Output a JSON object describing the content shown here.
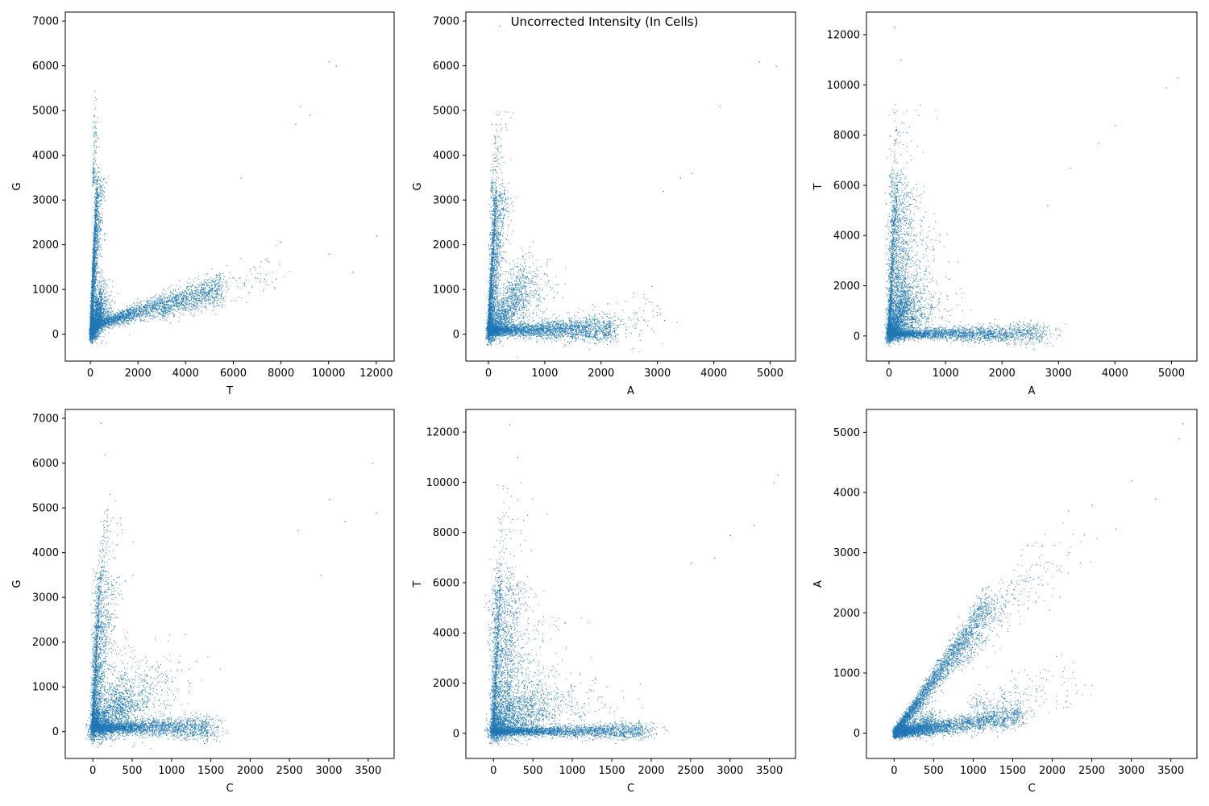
{
  "figure": {
    "title": "Uncorrected Intensity (In Cells)"
  },
  "chart_data": [
    {
      "type": "scatter",
      "xlabel": "T",
      "ylabel": "G",
      "xlim": [
        -1050,
        12750
      ],
      "ylim": [
        -600,
        7200
      ],
      "xticks": [
        0,
        2000,
        4000,
        6000,
        8000,
        10000,
        12000
      ],
      "yticks": [
        0,
        1000,
        2000,
        3000,
        4000,
        5000,
        6000,
        7000
      ],
      "color": "#1f77b4",
      "clusters": [
        {
          "x0": 0,
          "y0": 200,
          "x1": 5500,
          "y1": 1050,
          "spread": 150,
          "count": 2600
        },
        {
          "x0": 0,
          "y0": 100,
          "x1": 300,
          "y1": 3400,
          "spread": 150,
          "count": 2200
        },
        {
          "x0": 0,
          "y0": 0,
          "x1": 500,
          "y1": 800,
          "spread": 250,
          "count": 1800
        },
        {
          "x0": 3000,
          "y0": 500,
          "x1": 8000,
          "y1": 1500,
          "spread": 250,
          "count": 250
        },
        {
          "x0": 100,
          "y0": 3400,
          "x1": 200,
          "y1": 5200,
          "spread": 120,
          "count": 120
        }
      ],
      "points": [
        [
          10000,
          6100
        ],
        [
          10300,
          6000
        ],
        [
          8800,
          5100
        ],
        [
          9200,
          4900
        ],
        [
          8600,
          4700
        ],
        [
          6300,
          3500
        ],
        [
          12000,
          2200
        ],
        [
          11000,
          1400
        ],
        [
          10000,
          1800
        ]
      ]
    },
    {
      "type": "scatter",
      "xlabel": "A",
      "ylabel": "G",
      "xlim": [
        -400,
        5450
      ],
      "ylim": [
        -600,
        7200
      ],
      "xticks": [
        0,
        1000,
        2000,
        3000,
        4000,
        5000
      ],
      "yticks": [
        0,
        1000,
        2000,
        3000,
        4000,
        5000,
        6000,
        7000
      ],
      "color": "#1f77b4",
      "clusters": [
        {
          "x0": 0,
          "y0": 100,
          "x1": 2200,
          "y1": 100,
          "spread": 130,
          "count": 2600
        },
        {
          "x0": 0,
          "y0": 100,
          "x1": 150,
          "y1": 3200,
          "spread": 130,
          "count": 2200
        },
        {
          "x0": 0,
          "y0": 0,
          "x1": 700,
          "y1": 1300,
          "spread": 300,
          "count": 1800
        },
        {
          "x0": 1000,
          "y0": 200,
          "x1": 3000,
          "y1": 300,
          "spread": 250,
          "count": 250
        },
        {
          "x0": 50,
          "y0": 3200,
          "x1": 200,
          "y1": 5000,
          "spread": 150,
          "count": 120
        }
      ],
      "points": [
        [
          4800,
          6100
        ],
        [
          5100,
          6000
        ],
        [
          4100,
          5100
        ],
        [
          3600,
          3600
        ],
        [
          3400,
          3500
        ],
        [
          3100,
          3200
        ],
        [
          200,
          6900
        ]
      ]
    },
    {
      "type": "scatter",
      "xlabel": "A",
      "ylabel": "T",
      "xlim": [
        -400,
        5450
      ],
      "ylim": [
        -1000,
        12900
      ],
      "xticks": [
        0,
        1000,
        2000,
        3000,
        4000,
        5000
      ],
      "yticks": [
        0,
        2000,
        4000,
        6000,
        8000,
        10000,
        12000
      ],
      "color": "#1f77b4",
      "clusters": [
        {
          "x0": 0,
          "y0": 100,
          "x1": 2700,
          "y1": 100,
          "spread": 180,
          "count": 2600
        },
        {
          "x0": 0,
          "y0": 100,
          "x1": 150,
          "y1": 6000,
          "spread": 220,
          "count": 2200
        },
        {
          "x0": 0,
          "y0": 0,
          "x1": 400,
          "y1": 1500,
          "spread": 400,
          "count": 1800
        },
        {
          "x0": 200,
          "y0": 1000,
          "x1": 400,
          "y1": 4000,
          "spread": 400,
          "count": 400
        },
        {
          "x0": 50,
          "y0": 6000,
          "x1": 200,
          "y1": 9000,
          "spread": 300,
          "count": 120
        }
      ],
      "points": [
        [
          5100,
          10300
        ],
        [
          4900,
          9900
        ],
        [
          4000,
          8400
        ],
        [
          3700,
          7700
        ],
        [
          3200,
          6700
        ],
        [
          2800,
          5200
        ],
        [
          100,
          12300
        ],
        [
          200,
          11000
        ]
      ]
    },
    {
      "type": "scatter",
      "xlabel": "C",
      "ylabel": "G",
      "xlim": [
        -350,
        3830
      ],
      "ylim": [
        -600,
        7200
      ],
      "xticks": [
        0,
        500,
        1000,
        1500,
        2000,
        2500,
        3000,
        3500
      ],
      "yticks": [
        0,
        1000,
        2000,
        3000,
        4000,
        5000,
        6000,
        7000
      ],
      "color": "#1f77b4",
      "clusters": [
        {
          "x0": 0,
          "y0": 100,
          "x1": 1500,
          "y1": 100,
          "spread": 120,
          "count": 2600
        },
        {
          "x0": 0,
          "y0": 100,
          "x1": 100,
          "y1": 3400,
          "spread": 130,
          "count": 2200
        },
        {
          "x0": 0,
          "y0": 0,
          "x1": 500,
          "y1": 1000,
          "spread": 350,
          "count": 1800
        },
        {
          "x0": 300,
          "y0": 500,
          "x1": 1000,
          "y1": 1500,
          "spread": 300,
          "count": 250
        },
        {
          "x0": 100,
          "y0": 3400,
          "x1": 200,
          "y1": 5000,
          "spread": 150,
          "count": 120
        }
      ],
      "points": [
        [
          3550,
          6000
        ],
        [
          3600,
          4900
        ],
        [
          3000,
          5200
        ],
        [
          3200,
          4700
        ],
        [
          2600,
          4500
        ],
        [
          2900,
          3500
        ],
        [
          100,
          6900
        ],
        [
          150,
          6200
        ]
      ]
    },
    {
      "type": "scatter",
      "xlabel": "C",
      "ylabel": "T",
      "xlim": [
        -350,
        3830
      ],
      "ylim": [
        -1000,
        12900
      ],
      "xticks": [
        0,
        500,
        1000,
        1500,
        2000,
        2500,
        3000,
        3500
      ],
      "yticks": [
        0,
        2000,
        4000,
        6000,
        8000,
        10000,
        12000
      ],
      "color": "#1f77b4",
      "clusters": [
        {
          "x0": 0,
          "y0": 100,
          "x1": 1900,
          "y1": 100,
          "spread": 150,
          "count": 2600
        },
        {
          "x0": 0,
          "y0": 100,
          "x1": 100,
          "y1": 6000,
          "spread": 200,
          "count": 2200
        },
        {
          "x0": 0,
          "y0": 0,
          "x1": 700,
          "y1": 1600,
          "spread": 500,
          "count": 1800
        },
        {
          "x0": 200,
          "y0": 1000,
          "x1": 300,
          "y1": 4500,
          "spread": 400,
          "count": 400
        },
        {
          "x0": 50,
          "y0": 6000,
          "x1": 200,
          "y1": 9500,
          "spread": 300,
          "count": 120
        }
      ],
      "points": [
        [
          3600,
          10300
        ],
        [
          3550,
          10000
        ],
        [
          3300,
          8300
        ],
        [
          3000,
          7900
        ],
        [
          2800,
          7000
        ],
        [
          2500,
          6800
        ],
        [
          200,
          12300
        ],
        [
          300,
          11000
        ]
      ]
    },
    {
      "type": "scatter",
      "xlabel": "C",
      "ylabel": "A",
      "xlim": [
        -350,
        3830
      ],
      "ylim": [
        -420,
        5380
      ],
      "xticks": [
        0,
        500,
        1000,
        1500,
        2000,
        2500,
        3000,
        3500
      ],
      "yticks": [
        0,
        1000,
        2000,
        3000,
        4000,
        5000
      ],
      "color": "#1f77b4",
      "clusters": [
        {
          "x0": 0,
          "y0": 0,
          "x1": 1200,
          "y1": 2200,
          "spread": 110,
          "count": 3000
        },
        {
          "x0": 0,
          "y0": 0,
          "x1": 1600,
          "y1": 300,
          "spread": 90,
          "count": 2500
        },
        {
          "x0": 0,
          "y0": 0,
          "x1": 500,
          "y1": 200,
          "spread": 90,
          "count": 1200
        },
        {
          "x0": 800,
          "y0": 1200,
          "x1": 2000,
          "y1": 3100,
          "spread": 250,
          "count": 300
        },
        {
          "x0": 1000,
          "y0": 500,
          "x1": 2200,
          "y1": 800,
          "spread": 250,
          "count": 200
        }
      ],
      "points": [
        [
          3650,
          5150
        ],
        [
          3600,
          4900
        ],
        [
          3000,
          4200
        ],
        [
          3300,
          3900
        ],
        [
          2500,
          3800
        ],
        [
          2800,
          3400
        ],
        [
          2400,
          3300
        ],
        [
          2200,
          3700
        ]
      ]
    }
  ]
}
